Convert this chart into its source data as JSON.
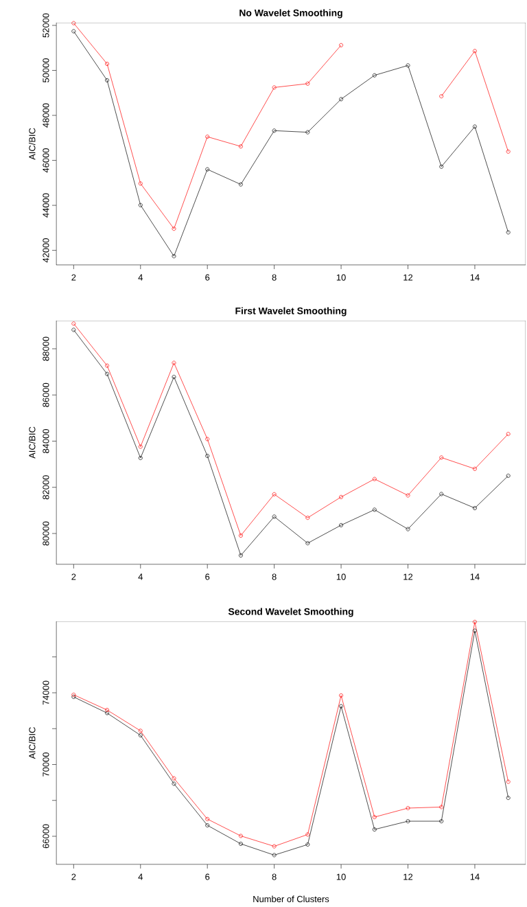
{
  "chart_data": [
    {
      "type": "line",
      "title": "No Wavelet Smoothing",
      "ylabel": "AIC/BIC",
      "x": [
        2,
        3,
        4,
        5,
        6,
        7,
        8,
        9,
        10,
        11,
        12,
        13,
        14,
        15
      ],
      "xlim": [
        1.48,
        15.52
      ],
      "xticks": [
        2,
        4,
        6,
        8,
        10,
        12,
        14
      ],
      "ylim": [
        41347,
        52122
      ],
      "yticks": [
        42000,
        44000,
        46000,
        48000,
        50000,
        52000
      ],
      "marker": "circle",
      "line_style": "solid",
      "series": [
        {
          "color": "#000000",
          "values": [
            51740,
            49560,
            44010,
            41740,
            45600,
            44930,
            47320,
            47250,
            48720,
            49780,
            50220,
            45720,
            47500,
            42800
          ]
        },
        {
          "color": "#ff0000",
          "values": [
            52100,
            50290,
            44970,
            42960,
            47050,
            46620,
            49240,
            49410,
            51120,
            null,
            null,
            48850,
            50860,
            46390
          ]
        }
      ]
    },
    {
      "type": "line",
      "title": "First Wavelet Smoothing",
      "ylabel": "AIC/BIC",
      "x": [
        2,
        3,
        4,
        5,
        6,
        7,
        8,
        9,
        10,
        11,
        12,
        13,
        14,
        15
      ],
      "xlim": [
        1.48,
        15.52
      ],
      "xticks": [
        2,
        4,
        6,
        8,
        10,
        12,
        14
      ],
      "ylim": [
        78662,
        89219
      ],
      "yticks": [
        80000,
        82000,
        84000,
        86000,
        88000
      ],
      "marker": "circle",
      "line_style": "solid",
      "series": [
        {
          "color": "#000000",
          "values": [
            88820,
            86910,
            83270,
            86780,
            83360,
            79050,
            80730,
            79580,
            80360,
            81030,
            80190,
            81710,
            81100,
            82500
          ]
        },
        {
          "color": "#ff0000",
          "values": [
            89090,
            87270,
            83760,
            87390,
            84090,
            79910,
            81700,
            80680,
            81580,
            82360,
            81650,
            83290,
            82800,
            84310
          ]
        }
      ]
    },
    {
      "type": "line",
      "title": "Second Wavelet Smoothing",
      "xlabel": "Number of Clusters",
      "ylabel": "AIC/BIC",
      "x": [
        2,
        3,
        4,
        5,
        6,
        7,
        8,
        9,
        10,
        11,
        12,
        13,
        14,
        15
      ],
      "xlim": [
        1.48,
        15.52
      ],
      "xticks": [
        2,
        4,
        6,
        8,
        10,
        12,
        14
      ],
      "ylim": [
        64430,
        77981
      ],
      "yticks": [
        66000,
        {
          "value": 68000,
          "label": null
        },
        70000,
        {
          "value": 72000,
          "label": null
        },
        74000,
        {
          "value": 76000,
          "label": null
        }
      ],
      "marker": "circle",
      "line_style": "solid",
      "series": [
        {
          "color": "#000000",
          "values": [
            73770,
            72870,
            71630,
            68930,
            66610,
            65580,
            64950,
            65540,
            73250,
            66380,
            66840,
            66840,
            77460,
            68140
          ]
        },
        {
          "color": "#ff0000",
          "values": [
            73890,
            73040,
            71880,
            69230,
            66960,
            66020,
            65440,
            66100,
            73850,
            67070,
            67570,
            67630,
            77950,
            69040
          ]
        }
      ]
    }
  ]
}
